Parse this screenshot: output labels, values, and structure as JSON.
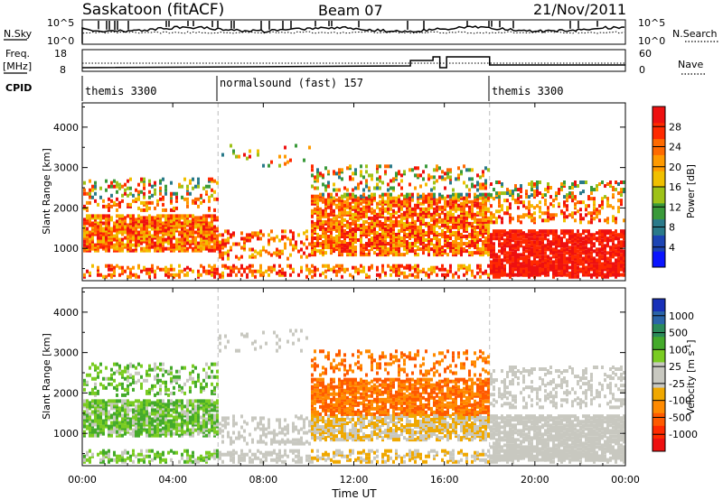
{
  "header": {
    "station": "Saskatoon (fitACF)",
    "beam": "Beam 07",
    "date": "21/Nov/2011"
  },
  "top_panels": {
    "nsky_label": "N.Sky",
    "nsky_ticks": [
      "10^5",
      "10^0"
    ],
    "nsearch_label": "N.Search",
    "nsearch_ticks": [
      "10^5",
      "10^0"
    ],
    "freq_label_1": "Freq.",
    "freq_label_2": "[MHz]",
    "freq_ticks": [
      "18",
      "8"
    ],
    "nave_label": "Nave",
    "nave_ticks": [
      "60",
      "0"
    ],
    "cpid_label": "CPID",
    "cpid_segments": [
      {
        "label": "themis 3300",
        "start_hour": 0,
        "end_hour": 6
      },
      {
        "label": "normalsound (fast) 157",
        "start_hour": 6,
        "end_hour": 18
      },
      {
        "label": "themis 3300",
        "start_hour": 18,
        "end_hour": 24
      }
    ]
  },
  "chart_data": [
    {
      "type": "heatmap",
      "name": "power-panel",
      "ylabel": "Slant Range [km]",
      "yticks": [
        "1000",
        "2000",
        "3000",
        "4000"
      ],
      "ylim": [
        200,
        4600
      ],
      "xlim": [
        0,
        24
      ],
      "colorbar_label": "Power [dB]",
      "colorbar_ticks": [
        "4",
        "8",
        "12",
        "16",
        "20",
        "24",
        "28"
      ],
      "colorbar_colors": [
        "#0a14ff",
        "#1c44b4",
        "#2a7a8a",
        "#3a9a3a",
        "#9ec218",
        "#f0c000",
        "#ff9a00",
        "#ff6a00",
        "#ff2a00",
        "#ee1010"
      ]
    },
    {
      "type": "heatmap",
      "name": "velocity-panel",
      "ylabel": "Slant Range [km]",
      "yticks": [
        "1000",
        "2000",
        "3000",
        "4000"
      ],
      "ylim": [
        200,
        4600
      ],
      "xlim": [
        0,
        24
      ],
      "colorbar_label": "Velocity [m s",
      "colorbar_label_sup": "-1",
      "colorbar_label_end": "]",
      "colorbar_ticks": [
        "1000",
        "500",
        "100",
        "25",
        "-25",
        "-100",
        "-500",
        "-1000"
      ],
      "colorbar_colors": [
        "#1830b8",
        "#2a64a8",
        "#2a8a5a",
        "#44aa2a",
        "#7acc22",
        "#c8c8c0",
        "#c8c8c0",
        "#f0a800",
        "#ff8a00",
        "#ff5a00",
        "#ff2a00",
        "#ee1010"
      ]
    }
  ],
  "xaxis": {
    "ticks": [
      "00:00",
      "04:00",
      "08:00",
      "12:00",
      "16:00",
      "20:00",
      "00:00"
    ],
    "label": "Time UT"
  }
}
